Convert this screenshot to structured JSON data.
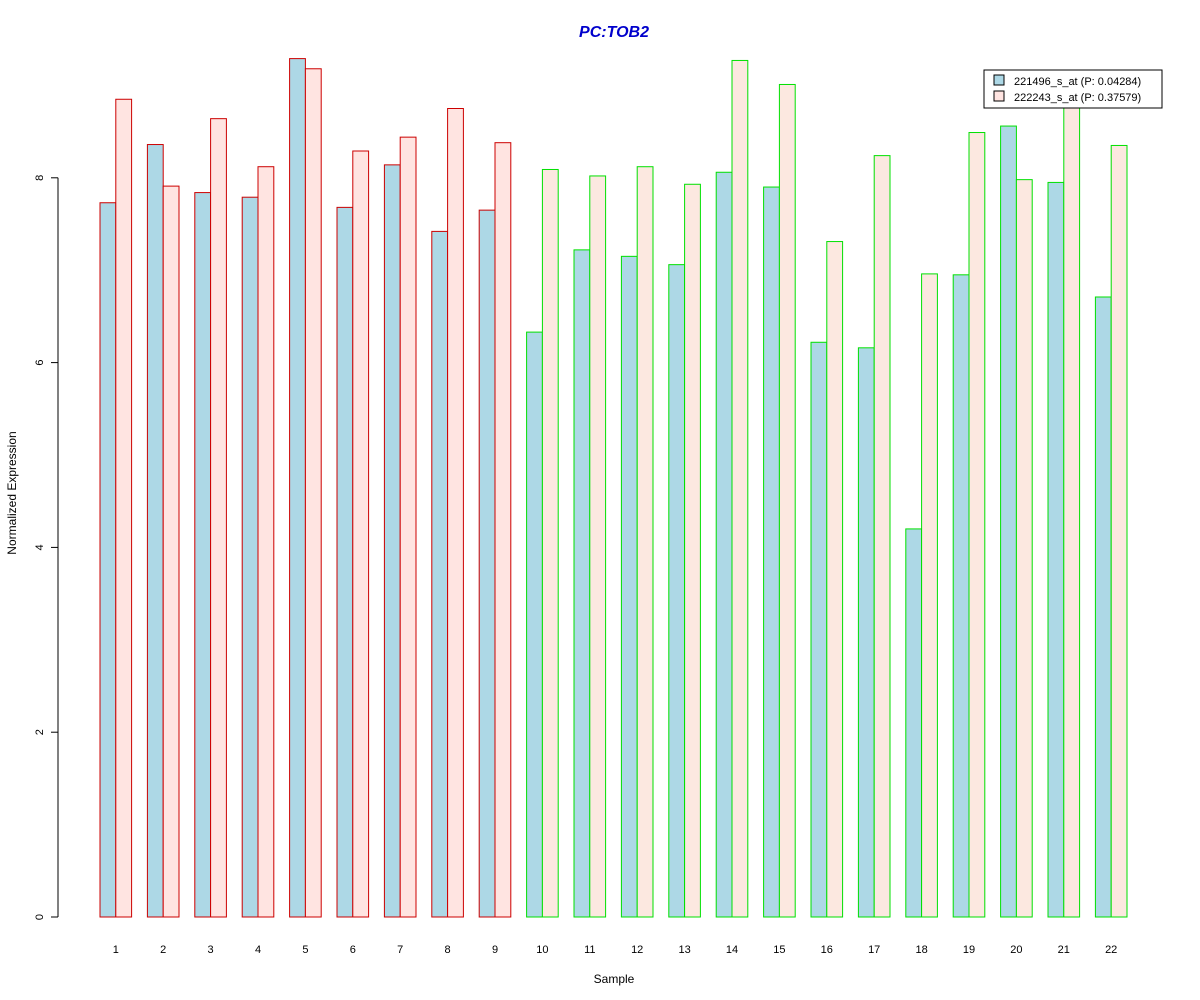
{
  "chart_data": {
    "type": "bar",
    "title": "PC:TOB2",
    "xlabel": "Sample",
    "ylabel": "Normalized Expression",
    "categories": [
      "1",
      "2",
      "3",
      "4",
      "5",
      "6",
      "7",
      "8",
      "9",
      "10",
      "11",
      "12",
      "13",
      "14",
      "15",
      "16",
      "17",
      "18",
      "19",
      "20",
      "21",
      "22"
    ],
    "series": [
      {
        "name": "221496_s_at (P: 0.04284)",
        "fill": "#add8e6",
        "values": [
          7.73,
          8.36,
          7.84,
          7.79,
          9.29,
          7.68,
          8.14,
          7.42,
          7.65,
          6.33,
          7.22,
          7.15,
          7.06,
          8.06,
          7.9,
          6.22,
          6.16,
          4.2,
          6.95,
          8.56,
          7.95,
          6.71
        ]
      },
      {
        "name": "222243_s_at (P: 0.37579)",
        "fill_group1": "#ffe4e1",
        "fill_group2": "#fce8e0",
        "values": [
          8.85,
          7.91,
          8.64,
          8.12,
          9.18,
          8.29,
          8.44,
          8.75,
          8.38,
          8.09,
          8.02,
          8.12,
          7.93,
          9.27,
          9.01,
          7.31,
          8.24,
          6.96,
          8.49,
          7.98,
          8.8,
          8.35
        ]
      }
    ],
    "group_colors": {
      "border_group1": "#cc0000",
      "border_group2": "#00e000",
      "group1_samples": 9
    },
    "title_color": "#0000cc",
    "y_ticks": [
      0,
      2,
      4,
      6,
      8
    ],
    "ylim": [
      0,
      9.3
    ],
    "legend_position": "top-right",
    "grid": false
  }
}
